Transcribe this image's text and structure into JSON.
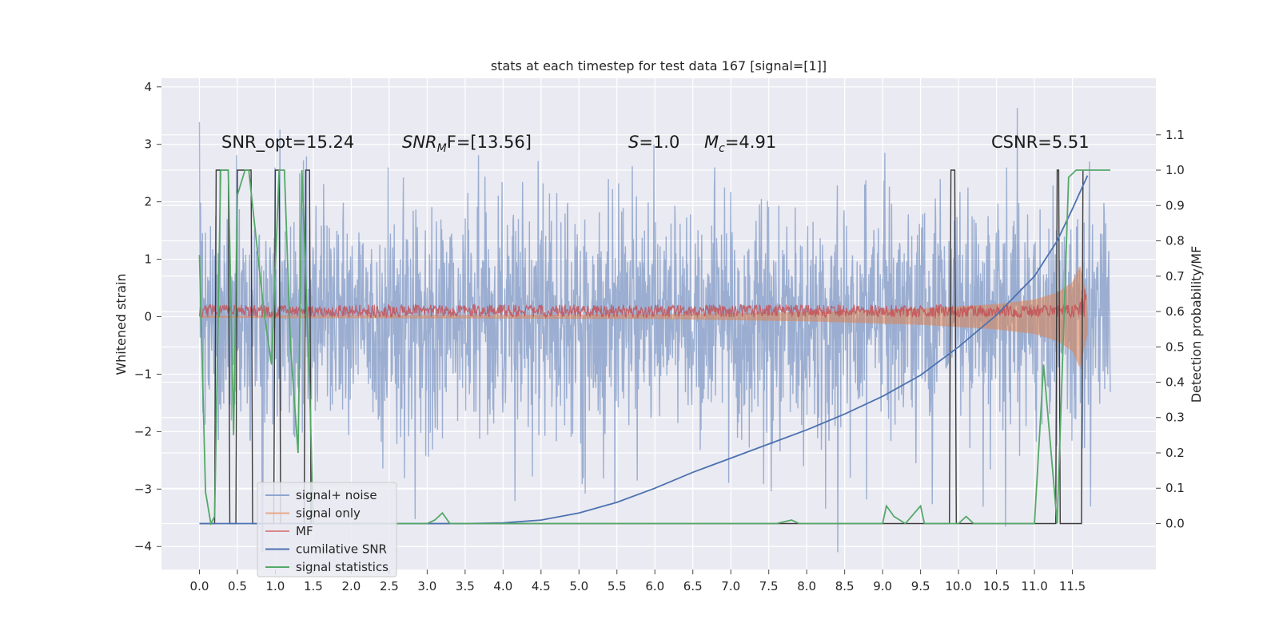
{
  "chart_data": {
    "type": "line",
    "title": "stats at each timestep for test data 167 [signal=[1]]",
    "ylabel_left": "Whitened strain",
    "ylabel_right": "Detection probability/MF",
    "xlim": [
      -0.5,
      12.6
    ],
    "ylim_left": [
      -4.4,
      4.15
    ],
    "ylim_right": [
      -0.13,
      1.26
    ],
    "x_ticks": [
      "0.0",
      "0.5",
      "1.0",
      "1.5",
      "2.0",
      "2.5",
      "3.0",
      "3.5",
      "4.0",
      "4.5",
      "5.0",
      "5.5",
      "6.0",
      "6.5",
      "7.0",
      "7.5",
      "8.0",
      "8.5",
      "9.0",
      "9.5",
      "10.0",
      "10.5",
      "11.0",
      "11.5"
    ],
    "y_ticks_left": [
      "4",
      "3",
      "2",
      "1",
      "0",
      "−1",
      "−2",
      "−3",
      "−4"
    ],
    "y_ticks_right": [
      "1.1",
      "1.0",
      "0.9",
      "0.8",
      "0.7",
      "0.6",
      "0.5",
      "0.4",
      "0.3",
      "0.2",
      "0.1",
      "0.0"
    ],
    "grid": true,
    "legend_position": "lower-left",
    "annotations": {
      "snr_opt": "SNR_opt=15.24",
      "snr_mf_sym": "SNR",
      "snr_mf_sub": "M",
      "snr_mf_rest": "F=[13.56]",
      "s_sym": "S",
      "s_rest": "=1.0",
      "mc_sym": "M",
      "mc_sub": "c",
      "mc_rest": "=4.91",
      "csnr": "CSNR=5.51"
    },
    "series": [
      {
        "name": "signal+ noise",
        "color": "#4c72b0",
        "axis": "left",
        "noise_std": 0.95,
        "x_range": [
          0.0,
          12.0
        ]
      },
      {
        "name": "signal only",
        "color": "#dd8452",
        "axis": "left",
        "envelope": {
          "x": [
            0.0,
            6.0,
            8.0,
            9.5,
            10.5,
            11.0,
            11.3,
            11.5,
            11.6,
            11.7
          ],
          "half_width": [
            0.02,
            0.04,
            0.08,
            0.14,
            0.22,
            0.3,
            0.42,
            0.6,
            0.9,
            0.3
          ]
        }
      },
      {
        "name": "MF",
        "color": "#c44e52",
        "axis": "left",
        "baseline": 0.1
      },
      {
        "name": "cumilative SNR",
        "color": "#4c72b0",
        "axis": "right",
        "x": [
          0.0,
          3.5,
          4.0,
          4.5,
          5.0,
          5.5,
          6.0,
          6.5,
          7.0,
          7.5,
          8.0,
          8.5,
          9.0,
          9.5,
          10.0,
          10.5,
          11.0,
          11.3,
          11.5,
          11.7
        ],
        "y": [
          0.0,
          0.0,
          0.002,
          0.01,
          0.03,
          0.06,
          0.1,
          0.145,
          0.185,
          0.225,
          0.265,
          0.31,
          0.36,
          0.42,
          0.5,
          0.59,
          0.7,
          0.8,
          0.89,
          0.985
        ]
      },
      {
        "name": "signal statistics",
        "color": "#55a868",
        "axis": "right",
        "x": [
          0.0,
          0.08,
          0.15,
          0.2,
          0.28,
          0.3,
          0.38,
          0.45,
          0.5,
          0.6,
          0.65,
          0.75,
          0.85,
          0.95,
          1.05,
          1.12,
          1.2,
          1.3,
          1.35,
          1.45,
          1.5,
          1.6,
          1.7,
          2.8,
          3.0,
          3.1,
          3.2,
          3.3,
          7.6,
          7.8,
          7.9,
          8.1,
          8.8,
          9.0,
          9.05,
          9.15,
          9.3,
          9.5,
          9.55,
          9.7,
          9.9,
          10.0,
          10.1,
          10.2,
          10.3,
          10.5,
          11.0,
          11.12,
          11.3,
          11.45,
          11.55,
          11.7,
          12.0
        ],
        "y": [
          0.76,
          0.09,
          0.0,
          0.02,
          1.0,
          1.0,
          1.0,
          0.25,
          0.93,
          1.0,
          1.0,
          0.8,
          0.6,
          0.45,
          1.0,
          1.0,
          0.5,
          0.2,
          1.0,
          0.4,
          0.0,
          0.0,
          0.0,
          0.0,
          0.0,
          0.01,
          0.03,
          0.0,
          0.0,
          0.01,
          0.0,
          0.0,
          0.0,
          0.0,
          0.05,
          0.02,
          0.0,
          0.05,
          0.0,
          0.0,
          0.0,
          0.0,
          0.02,
          0.0,
          0.0,
          0.0,
          0.0,
          0.45,
          0.0,
          0.98,
          1.0,
          1.0,
          1.0
        ]
      },
      {
        "name": "detections",
        "color": "#3a3a3a",
        "axis": "right",
        "x": [
          0.0,
          0.2,
          0.22,
          0.38,
          0.4,
          0.48,
          0.5,
          0.68,
          0.7,
          0.98,
          1.0,
          1.05,
          1.07,
          1.38,
          1.4,
          1.45,
          1.47,
          9.88,
          9.9,
          9.95,
          9.97,
          11.28,
          11.3,
          11.32,
          11.34,
          11.62,
          11.64
        ],
        "y": [
          0.0,
          0.0,
          1.0,
          1.0,
          0.0,
          0.0,
          1.0,
          1.0,
          0.0,
          0.0,
          1.0,
          1.0,
          0.0,
          0.0,
          1.0,
          1.0,
          0.0,
          0.0,
          1.0,
          1.0,
          0.0,
          0.0,
          1.0,
          1.0,
          0.0,
          0.0,
          1.0
        ]
      }
    ]
  },
  "legend": [
    {
      "label": "signal+ noise",
      "color": "#8fa6cf"
    },
    {
      "label": "signal only",
      "color": "#e6a98a"
    },
    {
      "label": "MF",
      "color": "#d88a8c"
    },
    {
      "label": "cumilative SNR",
      "color": "#4c72b0"
    },
    {
      "label": "signal statistics",
      "color": "#55a868"
    }
  ]
}
